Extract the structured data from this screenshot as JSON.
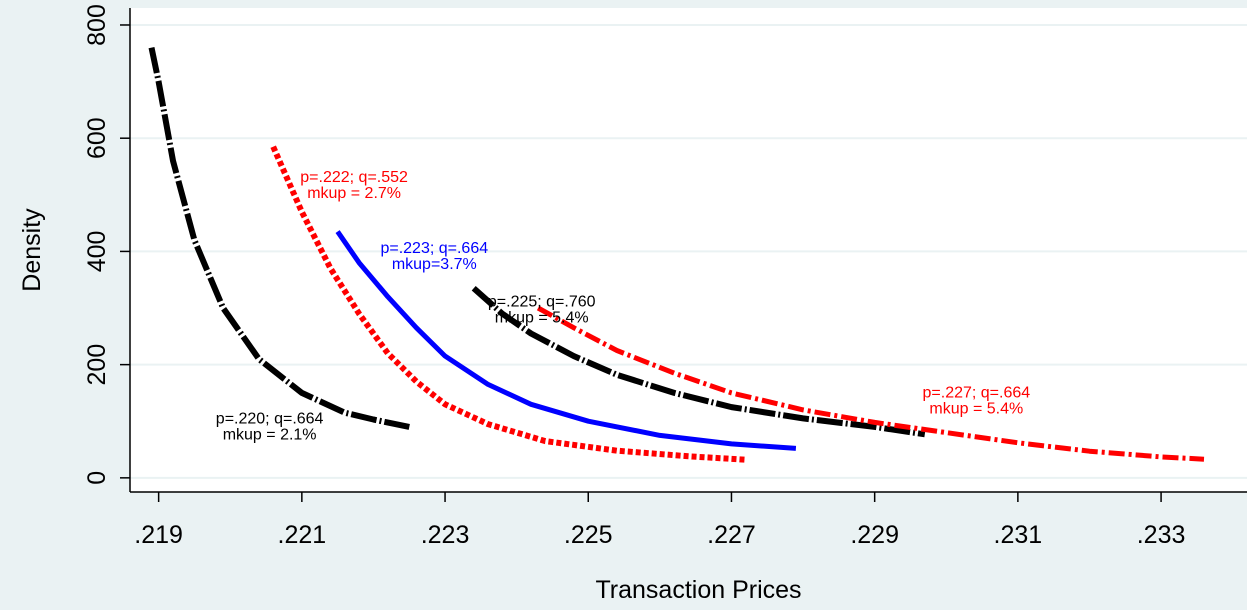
{
  "chart_data": {
    "type": "line",
    "xlabel": "Transaction Prices",
    "ylabel": "Density",
    "xlim": [
      0.2186,
      0.2342
    ],
    "ylim": [
      -25,
      830
    ],
    "x_ticks": [
      0.219,
      0.221,
      0.223,
      0.225,
      0.227,
      0.229,
      0.231,
      0.233
    ],
    "x_tick_labels": [
      ".219",
      ".221",
      ".223",
      ".225",
      ".227",
      ".229",
      ".231",
      ".233"
    ],
    "y_ticks": [
      0,
      200,
      400,
      600,
      800
    ],
    "y_tick_labels": [
      "0",
      "200",
      "400",
      "600",
      "800"
    ],
    "grid": true,
    "background_color": "#eaf2f3",
    "plot_background_color": "#ffffff",
    "series": [
      {
        "color": "#000000",
        "style": "long-dash",
        "points": [
          [
            0.2189,
            760
          ],
          [
            0.219,
            700
          ],
          [
            0.2192,
            560
          ],
          [
            0.2195,
            420
          ],
          [
            0.2199,
            300
          ],
          [
            0.2204,
            210
          ],
          [
            0.221,
            150
          ],
          [
            0.2216,
            115
          ],
          [
            0.222,
            103
          ],
          [
            0.2225,
            90
          ]
        ]
      },
      {
        "color": "#ff0000",
        "style": "dotted",
        "points": [
          [
            0.2206,
            585
          ],
          [
            0.221,
            470
          ],
          [
            0.2214,
            370
          ],
          [
            0.2218,
            290
          ],
          [
            0.2222,
            220
          ],
          [
            0.2226,
            170
          ],
          [
            0.223,
            130
          ],
          [
            0.2236,
            95
          ],
          [
            0.2244,
            65
          ],
          [
            0.2254,
            48
          ],
          [
            0.2264,
            38
          ],
          [
            0.2272,
            32
          ]
        ]
      },
      {
        "color": "#0000ff",
        "style": "solid",
        "points": [
          [
            0.2215,
            435
          ],
          [
            0.2218,
            380
          ],
          [
            0.2222,
            320
          ],
          [
            0.2226,
            265
          ],
          [
            0.223,
            215
          ],
          [
            0.2236,
            165
          ],
          [
            0.2242,
            130
          ],
          [
            0.225,
            100
          ],
          [
            0.226,
            75
          ],
          [
            0.227,
            60
          ],
          [
            0.2279,
            52
          ]
        ]
      },
      {
        "color": "#000000",
        "style": "long-dash",
        "points": [
          [
            0.2234,
            335
          ],
          [
            0.2238,
            290
          ],
          [
            0.2242,
            255
          ],
          [
            0.2248,
            215
          ],
          [
            0.2254,
            182
          ],
          [
            0.2262,
            150
          ],
          [
            0.227,
            125
          ],
          [
            0.228,
            105
          ],
          [
            0.229,
            90
          ],
          [
            0.2297,
            77
          ]
        ]
      },
      {
        "color": "#ff0000",
        "style": "dash-dot",
        "points": [
          [
            0.2243,
            300
          ],
          [
            0.2248,
            265
          ],
          [
            0.2254,
            225
          ],
          [
            0.2262,
            185
          ],
          [
            0.227,
            150
          ],
          [
            0.228,
            120
          ],
          [
            0.229,
            98
          ],
          [
            0.23,
            80
          ],
          [
            0.231,
            62
          ],
          [
            0.232,
            47
          ],
          [
            0.233,
            37
          ],
          [
            0.2336,
            33
          ]
        ]
      }
    ],
    "annotations": [
      {
        "lines": [
          "p=.220; q=.664",
          "mkup = 2.1%"
        ],
        "x": 0.22055,
        "y": 96,
        "color": "#000000"
      },
      {
        "lines": [
          "p=.222; q=.552",
          "mkup = 2.7%"
        ],
        "x": 0.22173,
        "y": 523,
        "color": "#ff0000"
      },
      {
        "lines": [
          "p=.223; q=.664",
          "mkup=3.7%"
        ],
        "x": 0.22285,
        "y": 397,
        "color": "#0000ff"
      },
      {
        "lines": [
          "p=.225; q=.760",
          "mkup = 5.4%"
        ],
        "x": 0.22435,
        "y": 303,
        "color": "#000000"
      },
      {
        "lines": [
          "p=.227; q=.664",
          "mkup = 5.4%"
        ],
        "x": 0.23042,
        "y": 142,
        "color": "#ff0000"
      }
    ]
  }
}
